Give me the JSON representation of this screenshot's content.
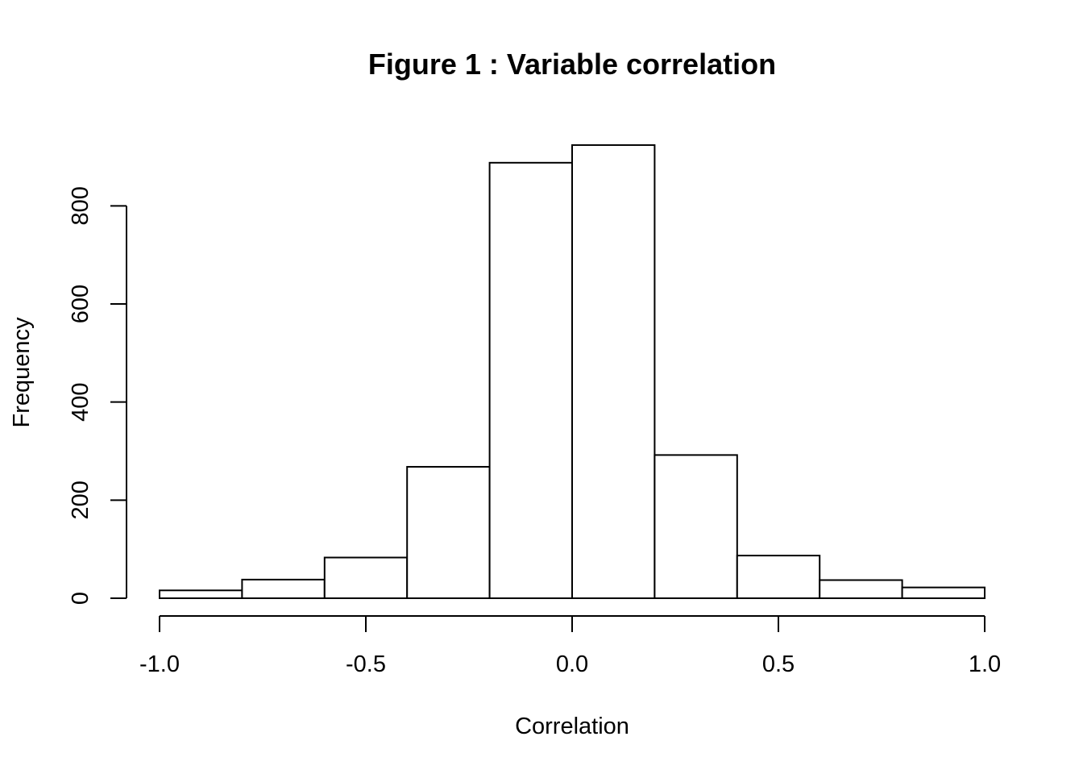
{
  "chart_data": {
    "type": "bar",
    "title": "Figure 1 : Variable correlation",
    "xlabel": "Correlation",
    "ylabel": "Frequency",
    "bins": [
      {
        "start": -1.0,
        "end": -0.8,
        "count": 16
      },
      {
        "start": -0.8,
        "end": -0.6,
        "count": 38
      },
      {
        "start": -0.6,
        "end": -0.4,
        "count": 83
      },
      {
        "start": -0.4,
        "end": -0.2,
        "count": 268
      },
      {
        "start": -0.2,
        "end": 0.0,
        "count": 888
      },
      {
        "start": 0.0,
        "end": 0.2,
        "count": 924
      },
      {
        "start": 0.2,
        "end": 0.4,
        "count": 292
      },
      {
        "start": 0.4,
        "end": 0.6,
        "count": 87
      },
      {
        "start": 0.6,
        "end": 0.8,
        "count": 37
      },
      {
        "start": 0.8,
        "end": 1.0,
        "count": 22
      }
    ],
    "x_ticks": [
      -1.0,
      -0.5,
      0.0,
      0.5,
      1.0
    ],
    "x_tick_labels": [
      "-1.0",
      "-0.5",
      "0.0",
      "0.5",
      "1.0"
    ],
    "y_ticks": [
      0,
      200,
      400,
      600,
      800
    ],
    "y_tick_labels": [
      "0",
      "200",
      "400",
      "600",
      "800"
    ],
    "xlim": [
      -1.0,
      1.0
    ],
    "ylim": [
      0,
      924
    ],
    "grid": false,
    "legend": "none",
    "colors": {
      "bar_fill": "#ffffff",
      "bar_stroke": "#000000"
    }
  }
}
